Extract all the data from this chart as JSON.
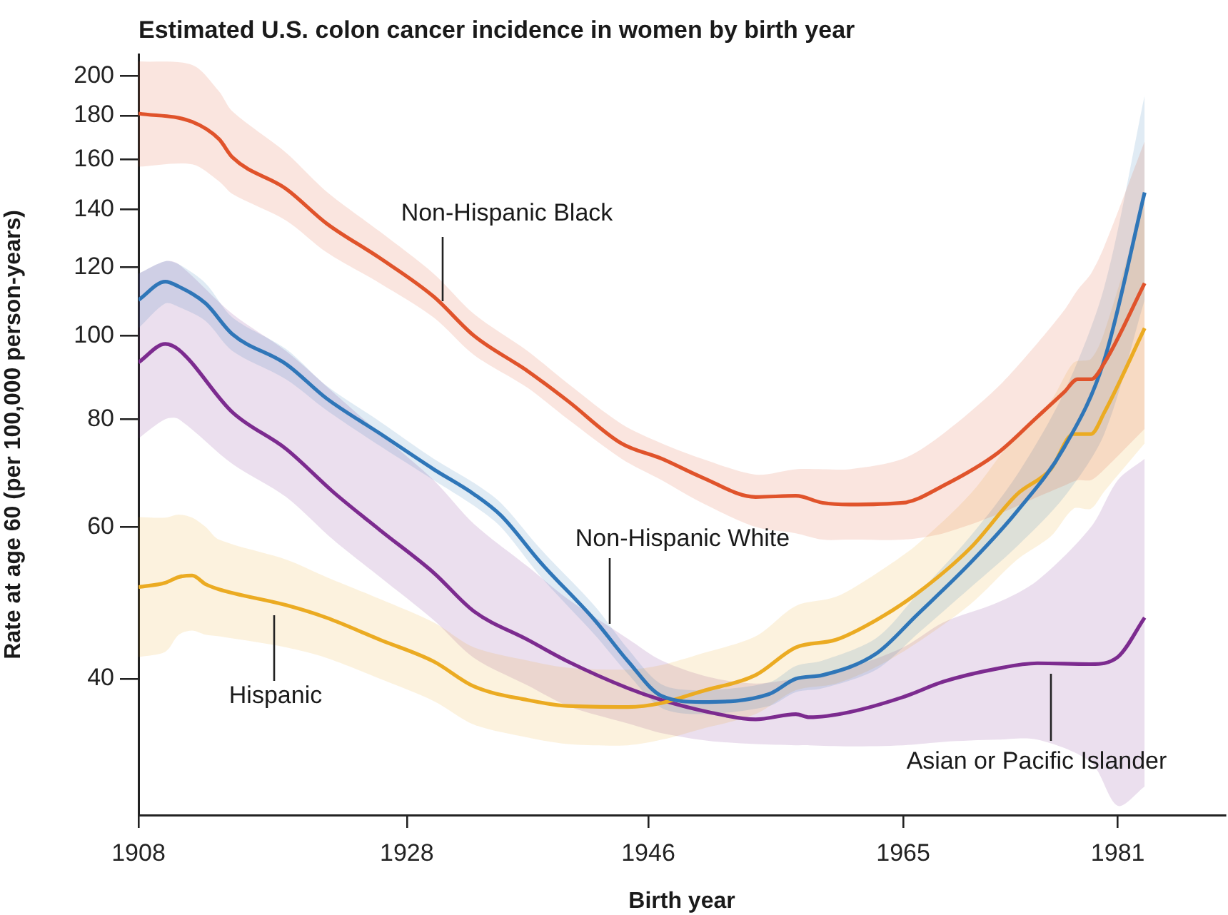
{
  "chart_data": {
    "type": "line",
    "title": "Estimated U.S. colon cancer incidence in women by birth year",
    "xlabel": "Birth year",
    "ylabel": "Rate at age 60 (per 100,000 person-years)",
    "log": "y",
    "grid": false,
    "legend": false,
    "xlim": [
      1908,
      1989
    ],
    "xticks": [
      1908,
      1928,
      1946,
      1965,
      1981
    ],
    "ylim": [
      27.8,
      212
    ],
    "yticks": [
      40,
      60,
      80,
      100,
      120,
      140,
      160,
      180,
      200
    ],
    "series": [
      {
        "name": "Non-Hispanic Black",
        "color": "#e0532b",
        "x": [
          1908,
          1912,
          1914,
          1915,
          1919,
          1922,
          1926,
          1930,
          1933,
          1937,
          1940,
          1944,
          1947,
          1950,
          1954,
          1957,
          1959,
          1961,
          1965,
          1968,
          1972,
          1975,
          1977,
          1978,
          1979,
          1980,
          1983
        ],
        "values": [
          181,
          177,
          169,
          161,
          148,
          135,
          123,
          111,
          100,
          91,
          84,
          75,
          72,
          68.5,
          65,
          65.2,
          64,
          63.7,
          64,
          67,
          73,
          80.5,
          86,
          89,
          89,
          93,
          115
        ],
        "lower": [
          157,
          158,
          151,
          146,
          136,
          125,
          115,
          105,
          95,
          87,
          80,
          72,
          68,
          64,
          60,
          59,
          58,
          58,
          58,
          59,
          62,
          65,
          67,
          68,
          68,
          70,
          78
        ],
        "upper": [
          208,
          206,
          192,
          182,
          163,
          147,
          132,
          118,
          106,
          96,
          88,
          79,
          75,
          72,
          69,
          70,
          70,
          70,
          72,
          77,
          87,
          98,
          107,
          113,
          118,
          127,
          168
        ]
      },
      {
        "name": "Non-Hispanic White",
        "color": "#2f76b8",
        "x": [
          1908,
          1910,
          1911,
          1913,
          1915,
          1919,
          1922,
          1926,
          1930,
          1933,
          1935,
          1938,
          1942,
          1944.5,
          1947,
          1950,
          1955,
          1957,
          1959,
          1963,
          1966,
          1970,
          1973.5,
          1977,
          1980,
          1983
        ],
        "values": [
          110,
          115.5,
          114,
          109,
          100.4,
          92.7,
          84.6,
          77,
          70,
          65.5,
          61.9,
          54.5,
          46.8,
          41.9,
          38.2,
          37.6,
          38.4,
          40,
          40.4,
          42.8,
          47.4,
          54.5,
          62.6,
          74.2,
          93.8,
          146.6
        ],
        "lower": [
          102,
          109,
          108,
          104,
          96,
          89,
          82,
          74.5,
          68,
          63.5,
          60,
          52.5,
          45,
          40.5,
          37,
          36.4,
          37.2,
          38.6,
          39,
          41,
          45,
          51,
          57,
          65,
          77,
          110
        ],
        "upper": [
          118,
          122,
          121,
          115,
          105,
          96.5,
          87.5,
          79.5,
          72,
          67.5,
          64,
          56.5,
          48.6,
          43.3,
          39.4,
          38.8,
          39.6,
          41.4,
          42,
          44.6,
          50,
          58.5,
          69,
          86,
          114,
          190
        ]
      },
      {
        "name": "Hispanic",
        "color": "#ebab22",
        "x": [
          1908,
          1910,
          1911,
          1912,
          1913,
          1914,
          1919,
          1922,
          1926,
          1930,
          1933,
          1937,
          1940,
          1944.5,
          1947,
          1950,
          1954,
          1957,
          1960,
          1963,
          1966,
          1970,
          1973.5,
          1976,
          1977.7,
          1979,
          1980,
          1983
        ],
        "values": [
          51.1,
          51.7,
          52.5,
          52.7,
          51.5,
          50.8,
          48.7,
          47.1,
          44.4,
          41.9,
          39.2,
          37.8,
          37.2,
          37.1,
          37.5,
          38.7,
          40.4,
          43.5,
          44.4,
          46.8,
          50.2,
          56.7,
          65.5,
          70,
          76.9,
          76.9,
          81.5,
          102
        ],
        "lower": [
          42.4,
          43,
          45,
          45.5,
          45,
          44.8,
          43.5,
          42.3,
          40,
          37.7,
          35.4,
          34.2,
          33.6,
          33.5,
          34,
          35,
          36.4,
          38.8,
          39.5,
          41.3,
          44,
          48.8,
          55,
          58.5,
          63,
          63,
          66,
          75
        ],
        "upper": [
          61.6,
          61.5,
          62,
          61.5,
          60,
          58,
          55,
          52.5,
          49.5,
          46.5,
          43.5,
          42,
          41.2,
          41,
          41.5,
          42.8,
          44.8,
          48.6,
          49.8,
          53,
          57.2,
          65.5,
          77,
          84,
          93,
          94,
          101,
          144
        ]
      },
      {
        "name": "Asian or Pacific Islander",
        "color": "#7c2b8f",
        "x": [
          1908,
          1910,
          1911,
          1915,
          1919,
          1922.5,
          1926,
          1930,
          1933,
          1937,
          1940,
          1944.5,
          1947,
          1950.5,
          1954,
          1957,
          1958,
          1961,
          1965,
          1968,
          1972,
          1975,
          1979,
          1981,
          1983
        ],
        "values": [
          93.1,
          97.8,
          96.3,
          81.5,
          73.9,
          65.9,
          59.5,
          53.1,
          47.9,
          44.4,
          41.9,
          39,
          37.8,
          36.6,
          35.9,
          36.4,
          36.1,
          36.6,
          38.1,
          39.7,
          41.1,
          41.7,
          41.6,
          42.4,
          47.1
        ],
        "lower": [
          76,
          80,
          80,
          71,
          65,
          58,
          52.5,
          46.8,
          42.3,
          39.3,
          37.2,
          35.5,
          34.6,
          33.9,
          33.6,
          33.5,
          33.5,
          33.4,
          33.5,
          33.8,
          34,
          34,
          32,
          28.5,
          30
        ],
        "upper": [
          118,
          122,
          121,
          106,
          96,
          86,
          77,
          68,
          60.5,
          54,
          49.5,
          44.5,
          42,
          40.2,
          39.5,
          40,
          40.2,
          41.2,
          43.5,
          46.5,
          49,
          52,
          60,
          68,
          72
        ]
      }
    ]
  }
}
